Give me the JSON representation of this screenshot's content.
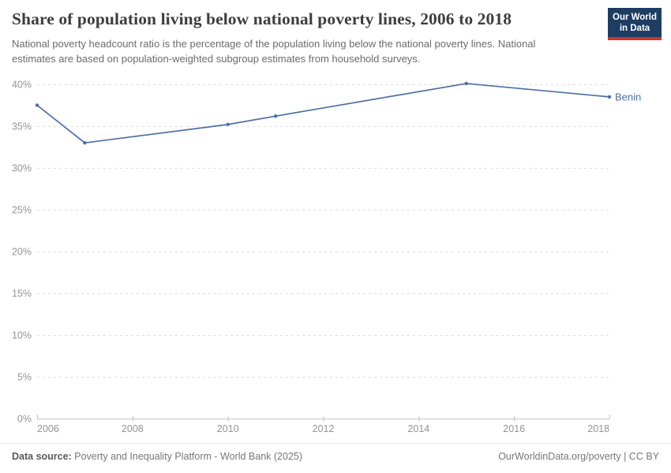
{
  "header": {
    "title": "Share of population living below national poverty lines, 2006 to 2018",
    "subtitle": "National poverty headcount ratio is the percentage of the population living below the national poverty lines. National estimates are based on population-weighted subgroup estimates from household surveys.",
    "logo": {
      "line1": "Our World",
      "line2": "in Data"
    }
  },
  "chart_data": {
    "type": "line",
    "title": "Share of population living below national poverty lines, 2006 to 2018",
    "series": [
      {
        "name": "Benin",
        "color": "#4c6ea4",
        "x": [
          2006,
          2007,
          2010,
          2011,
          2015,
          2018
        ],
        "values": [
          37.5,
          33.0,
          35.2,
          36.2,
          40.1,
          38.5
        ]
      }
    ],
    "xlim": [
      2006,
      2018
    ],
    "ylim": [
      0,
      40
    ],
    "x_ticks": [
      2006,
      2008,
      2010,
      2012,
      2014,
      2016,
      2018
    ],
    "y_ticks": [
      0,
      5,
      10,
      15,
      20,
      25,
      30,
      35,
      40
    ],
    "y_tick_suffix": "%",
    "grid": "horizontal-dashed",
    "legend_position": "right-end-label"
  },
  "footer": {
    "datasource_label": "Data source:",
    "datasource_value": "Poverty and Inequality Platform - World Bank (2025)",
    "credit": "OurWorldinData.org/poverty | CC BY"
  },
  "colors": {
    "line": "#4c6ea4",
    "logo_background": "#1d3d63",
    "logo_accent": "#d0342c",
    "gridline": "#dedede",
    "axis": "#c3c3c3",
    "tick_label": "#949494"
  }
}
